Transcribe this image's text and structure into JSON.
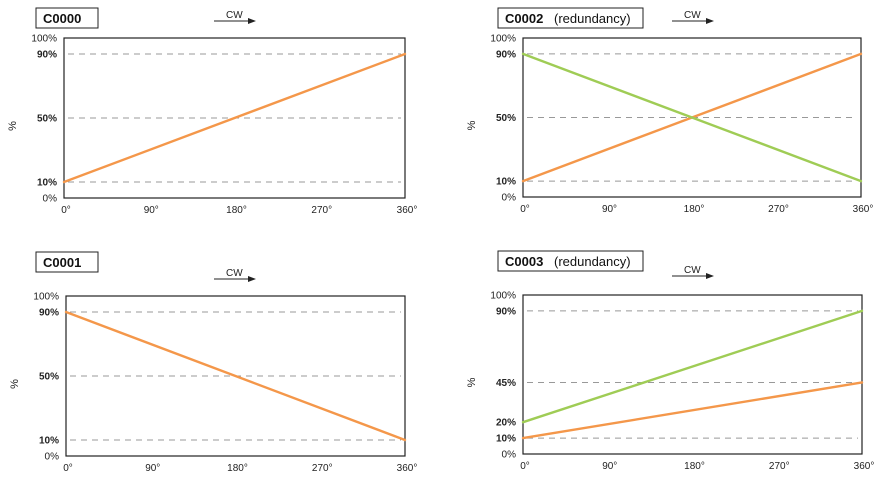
{
  "colors": {
    "orange": "#f4974a",
    "green": "#9fcc55",
    "grid": "#999999",
    "frame": "#222222"
  },
  "direction_label": "CW",
  "chart_data": [
    {
      "type": "line",
      "title": "C0000",
      "subtitle": "",
      "ylabel": "%",
      "xlabel": "",
      "x_ticks": [
        "0°",
        "90°",
        "180°",
        "270°",
        "360°"
      ],
      "y_ticks": [
        {
          "value": 0,
          "label": "0%",
          "bold": false
        },
        {
          "value": 10,
          "label": "10%",
          "bold": true
        },
        {
          "value": 50,
          "label": "50%",
          "bold": true
        },
        {
          "value": 90,
          "label": "90%",
          "bold": true
        },
        {
          "value": 100,
          "label": "100%",
          "bold": false
        }
      ],
      "xlim": [
        0,
        360
      ],
      "ylim": [
        0,
        100
      ],
      "series": [
        {
          "color": "orange",
          "x": [
            0,
            360
          ],
          "y": [
            10,
            90
          ]
        }
      ]
    },
    {
      "type": "line",
      "title": "C0001",
      "subtitle": "",
      "ylabel": "%",
      "xlabel": "",
      "x_ticks": [
        "0°",
        "90°",
        "180°",
        "270°",
        "360°"
      ],
      "y_ticks": [
        {
          "value": 0,
          "label": "0%",
          "bold": false
        },
        {
          "value": 10,
          "label": "10%",
          "bold": true
        },
        {
          "value": 50,
          "label": "50%",
          "bold": true
        },
        {
          "value": 90,
          "label": "90%",
          "bold": true
        },
        {
          "value": 100,
          "label": "100%",
          "bold": false
        }
      ],
      "xlim": [
        0,
        360
      ],
      "ylim": [
        0,
        100
      ],
      "series": [
        {
          "color": "orange",
          "x": [
            0,
            360
          ],
          "y": [
            90,
            10
          ]
        }
      ]
    },
    {
      "type": "line",
      "title": "C0002",
      "subtitle": "(redundancy)",
      "ylabel": "%",
      "xlabel": "",
      "x_ticks": [
        "0°",
        "90°",
        "180°",
        "270°",
        "360°"
      ],
      "y_ticks": [
        {
          "value": 0,
          "label": "0%",
          "bold": false
        },
        {
          "value": 10,
          "label": "10%",
          "bold": true
        },
        {
          "value": 50,
          "label": "50%",
          "bold": true
        },
        {
          "value": 90,
          "label": "90%",
          "bold": true
        },
        {
          "value": 100,
          "label": "100%",
          "bold": false
        }
      ],
      "xlim": [
        0,
        360
      ],
      "ylim": [
        0,
        100
      ],
      "series": [
        {
          "color": "orange",
          "x": [
            0,
            360
          ],
          "y": [
            10,
            90
          ]
        },
        {
          "color": "green",
          "x": [
            0,
            360
          ],
          "y": [
            90,
            10
          ]
        }
      ]
    },
    {
      "type": "line",
      "title": "C0003",
      "subtitle": "(redundancy)",
      "ylabel": "%",
      "xlabel": "",
      "x_ticks": [
        "0°",
        "90°",
        "180°",
        "270°",
        "360°"
      ],
      "y_ticks": [
        {
          "value": 0,
          "label": "0%",
          "bold": false
        },
        {
          "value": 10,
          "label": "10%",
          "bold": true
        },
        {
          "value": 20,
          "label": "20%",
          "bold": true
        },
        {
          "value": 45,
          "label": "45%",
          "bold": true
        },
        {
          "value": 90,
          "label": "90%",
          "bold": true
        },
        {
          "value": 100,
          "label": "100%",
          "bold": false
        }
      ],
      "grid_values": [
        10,
        45,
        90
      ],
      "xlim": [
        0,
        360
      ],
      "ylim": [
        0,
        100
      ],
      "series": [
        {
          "color": "orange",
          "x": [
            0,
            360
          ],
          "y": [
            10,
            45
          ]
        },
        {
          "color": "green",
          "x": [
            0,
            360
          ],
          "y": [
            20,
            90
          ]
        }
      ]
    }
  ]
}
